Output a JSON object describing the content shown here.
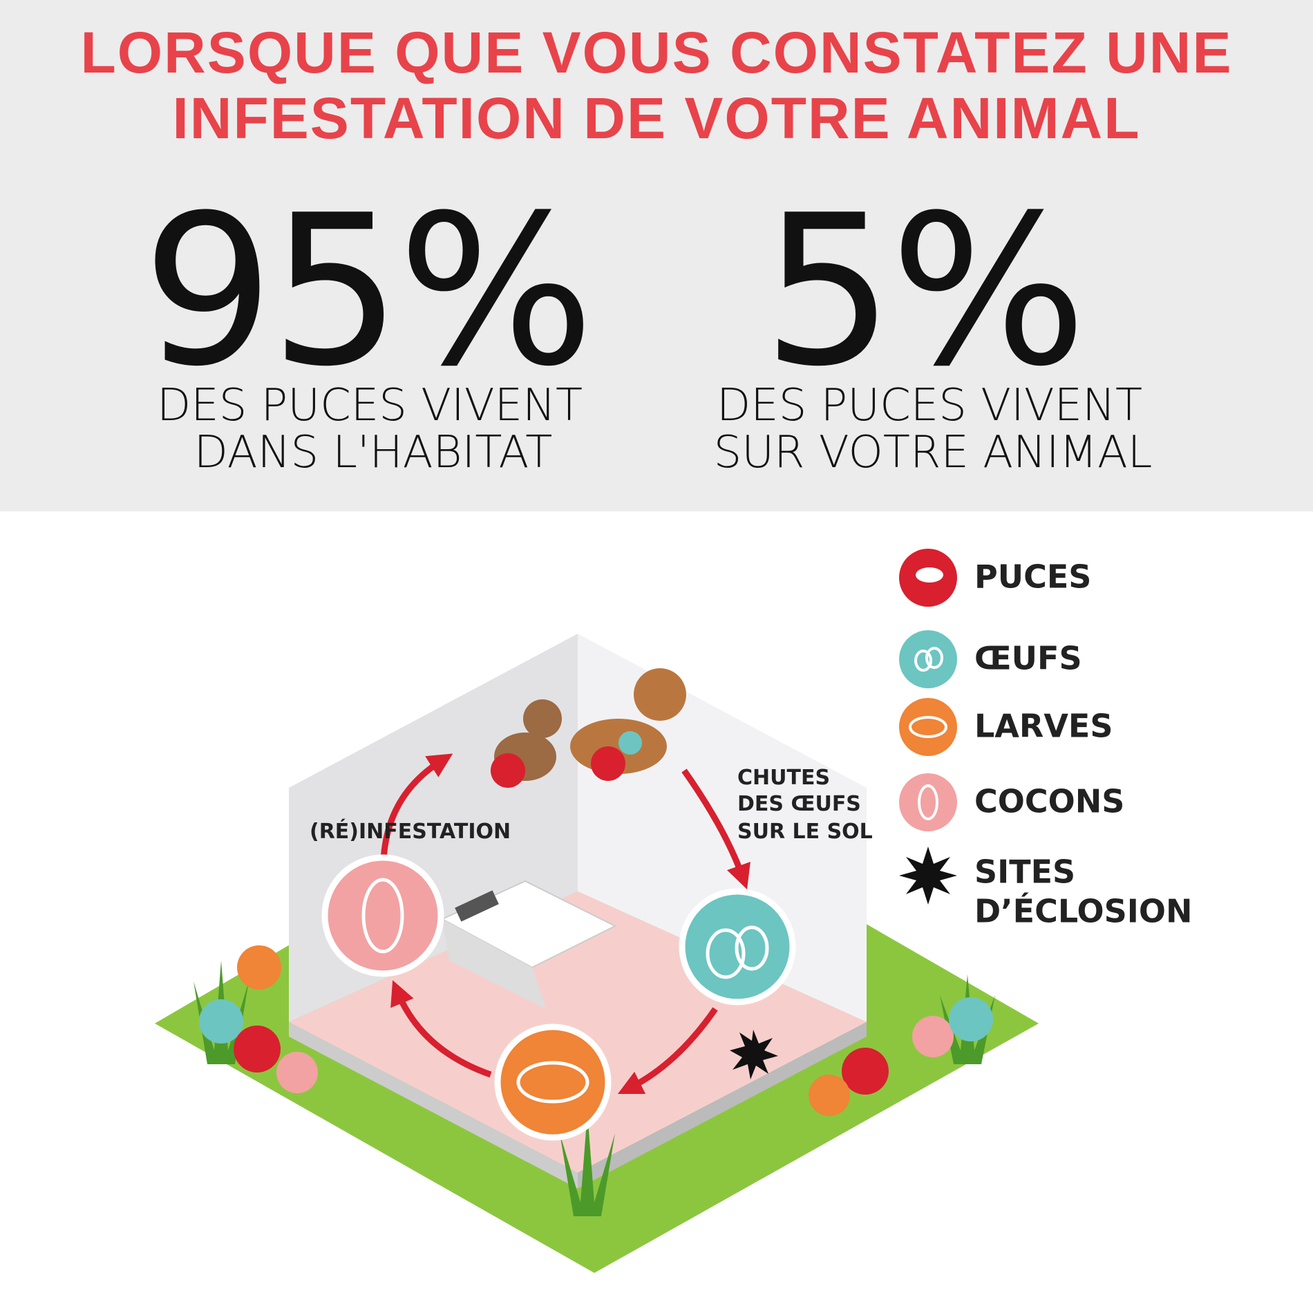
{
  "header": {
    "title_lines": [
      "LORSQUE QUE VOUS CONSTATEZ UNE",
      "INFESTATION DE VOTRE ANIMAL"
    ]
  },
  "stats": [
    {
      "value": "95%",
      "lines": [
        "DES PUCES VIVENT",
        "DANS L'HABITAT"
      ]
    },
    {
      "value": "5%",
      "lines": [
        "DES PUCES VIVENT",
        "SUR VOTRE ANIMAL"
      ]
    }
  ],
  "legend": [
    {
      "lines": [
        "PUCES"
      ]
    },
    {
      "lines": [
        "ŒUFS"
      ]
    },
    {
      "lines": [
        "LARVES"
      ]
    },
    {
      "lines": [
        "COCONS"
      ]
    },
    {
      "lines": [
        "SITES",
        "D’ÉCLOSION"
      ]
    }
  ],
  "diagram": {
    "reinfestation": "(RÉ)INFESTATION",
    "egg_fall_lines": [
      "CHUTES",
      "DES ŒUFS",
      "SUR LE SOL"
    ]
  }
}
